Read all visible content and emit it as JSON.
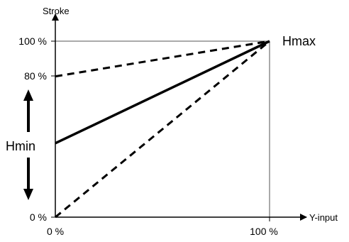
{
  "chart_data": {
    "type": "line",
    "title": "",
    "xlabel": "Y-input",
    "ylabel": "Stroke",
    "x_ticks": [
      "0 %",
      "100 %"
    ],
    "y_ticks": [
      "0 %",
      "80 %",
      "100 %"
    ],
    "xlim": [
      0,
      100
    ],
    "ylim": [
      0,
      100
    ],
    "grid": false,
    "series": [
      {
        "x": [
          0,
          100
        ],
        "y": [
          42,
          100
        ],
        "style": "solid"
      },
      {
        "x": [
          0,
          100
        ],
        "y": [
          80,
          100
        ],
        "style": "dashed"
      },
      {
        "x": [
          0,
          100
        ],
        "y": [
          0,
          100
        ],
        "style": "dashed"
      }
    ],
    "annotations": {
      "hmax": "Hmax",
      "hmin": "Hmin"
    }
  }
}
